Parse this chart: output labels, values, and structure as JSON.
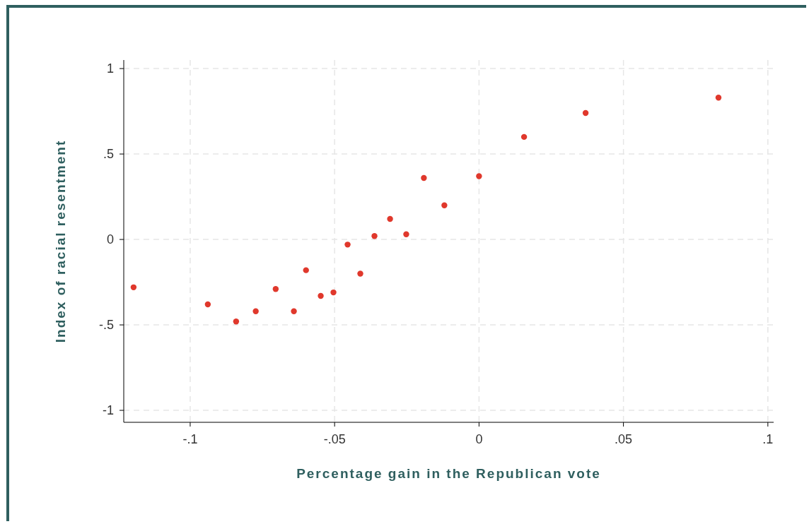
{
  "chart_data": {
    "type": "scatter",
    "xlabel": "Percentage gain in the Republican vote",
    "ylabel": "Index of racial resentment",
    "x": [
      -0.1196,
      -0.0939,
      -0.0841,
      -0.0773,
      -0.0704,
      -0.0641,
      -0.0599,
      -0.0548,
      -0.0504,
      -0.0455,
      -0.0411,
      -0.0362,
      -0.0308,
      -0.0252,
      -0.0191,
      -0.012,
      0.0,
      0.0156,
      0.0369,
      0.0829
    ],
    "values": [
      -0.28,
      -0.38,
      -0.48,
      -0.42,
      -0.29,
      -0.42,
      -0.18,
      -0.33,
      -0.31,
      -0.03,
      -0.2,
      0.02,
      0.12,
      0.03,
      0.36,
      0.2,
      0.37,
      0.6,
      0.74,
      0.83
    ],
    "color": "#e0382c",
    "marker": "circle",
    "xlim": [
      -0.123,
      0.102
    ],
    "ylim": [
      -1.07,
      1.05
    ],
    "xticks": [
      {
        "value": -0.1,
        "label": "-.1"
      },
      {
        "value": -0.05,
        "label": "-.05"
      },
      0,
      {
        "value": 0.05,
        "label": ".05"
      },
      {
        "value": 0.1,
        "label": ".1"
      }
    ],
    "yticks": [
      -1,
      {
        "value": -0.5,
        "label": "-.5"
      },
      0,
      {
        "value": 0.5,
        "label": ".5"
      },
      1
    ],
    "grid": true
  }
}
